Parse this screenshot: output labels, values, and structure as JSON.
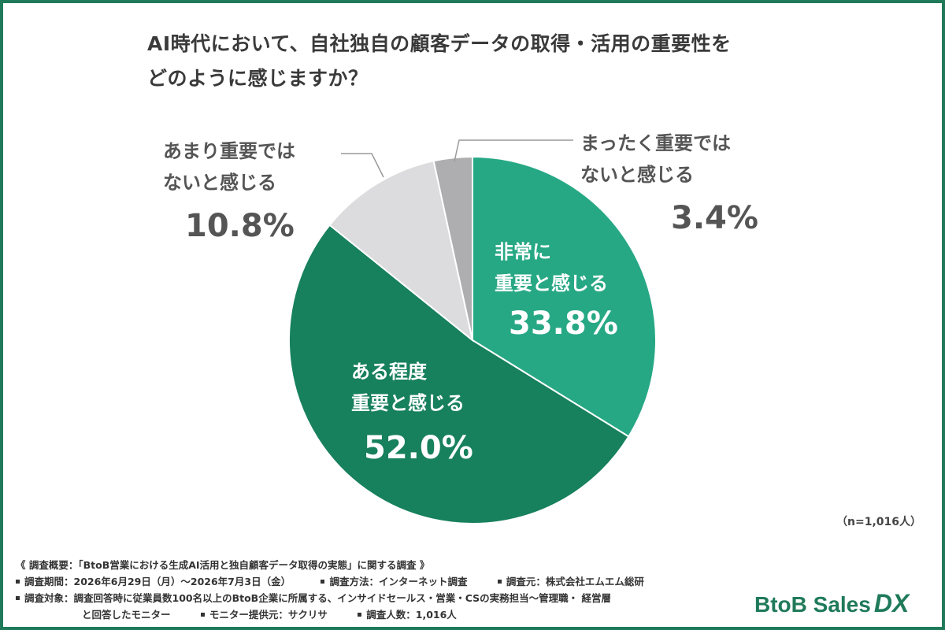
{
  "title": {
    "line1": "AI時代において、自社独自の顧客データの取得・活用の重要性を",
    "line2": "どのように感じますか？"
  },
  "chart_data": {
    "type": "pie",
    "slices": [
      {
        "label_lines": [
          "非常に",
          "重要と感じる"
        ],
        "value": 33.8,
        "value_text": "33.8%",
        "color": "#27a885"
      },
      {
        "label_lines": [
          "ある程度",
          "重要と感じる"
        ],
        "value": 52.0,
        "value_text": "52.0%",
        "color": "#17805c"
      },
      {
        "label_lines": [
          "あまり重要では",
          "ないと感じる"
        ],
        "value": 10.8,
        "value_text": "10.8%",
        "color": "#dcdcde"
      },
      {
        "label_lines": [
          "まったく重要では",
          "ないと感じる"
        ],
        "value": 3.4,
        "value_text": "3.4%",
        "color": "#aeaeb0"
      }
    ]
  },
  "sample_size": "（n=1,016人）",
  "footer": {
    "overview": "《 調査概要：「BtoB営業における生成AI活用と独自顧客データ取得の実態」に関する調査 》",
    "period": "調査期間：2026年6月29日（月）〜2026年7月3日（金）",
    "method": "調査方法：インターネット調査",
    "source": "調査元：株式会社エムエム総研",
    "target": "調査対象：調査回答時に従業員数100名以上のBtoB企業に所属する、インサイドセールス・営業・CSの実務担当〜管理職・ 経営層",
    "target2": "と回答したモニター",
    "provider": "モニター提供元：サクリサ",
    "respondents": "調査人数：1,016人"
  },
  "logo": {
    "main": "BtoB Sales",
    "accent": "DX"
  }
}
